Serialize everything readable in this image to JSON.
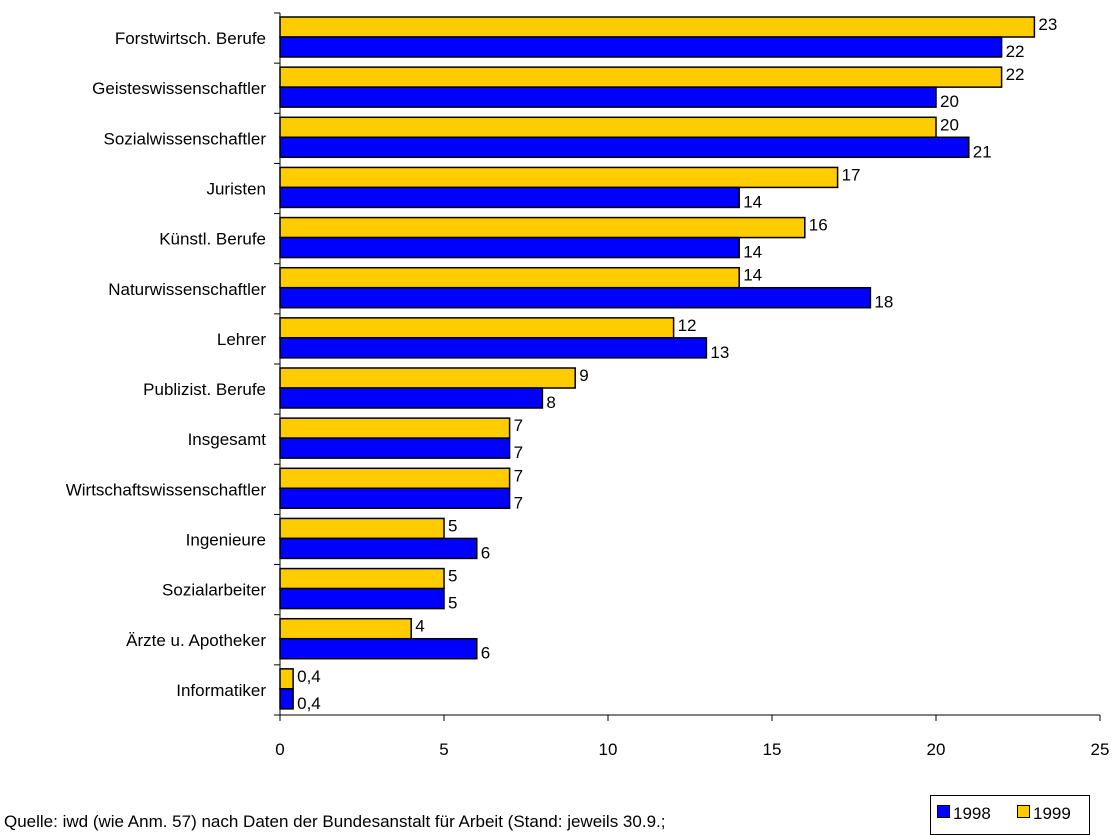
{
  "chart_data": {
    "type": "bar",
    "orientation": "horizontal",
    "categories": [
      "Forstwirtsch. Berufe",
      "Geisteswissenschaftler",
      "Sozialwissenschaftler",
      "Juristen",
      "Künstl. Berufe",
      "Naturwissenschaftler",
      "Lehrer",
      "Publizist. Berufe",
      "Insgesamt",
      "Wirtschaftswissenschaftler",
      "Ingenieure",
      "Sozialarbeiter",
      "Ärzte u. Apotheker",
      "Informatiker"
    ],
    "series": [
      {
        "name": "1999",
        "color": "#ffcc00",
        "values": [
          23,
          22,
          20,
          17,
          16,
          14,
          12,
          9,
          7,
          7,
          5,
          5,
          4,
          0.4
        ],
        "labels": [
          "23",
          "22",
          "20",
          "17",
          "16",
          "14",
          "12",
          "9",
          "7",
          "7",
          "5",
          "5",
          "4",
          "0,4"
        ]
      },
      {
        "name": "1998",
        "color": "#0000ff",
        "values": [
          22,
          20,
          21,
          14,
          14,
          18,
          13,
          8,
          7,
          7,
          6,
          5,
          6,
          0.4
        ],
        "labels": [
          "22",
          "20",
          "21",
          "14",
          "14",
          "18",
          "13",
          "8",
          "7",
          "7",
          "6",
          "5",
          "6",
          "0,4"
        ]
      }
    ],
    "xlim": [
      0,
      25
    ],
    "xticks": [
      0,
      5,
      10,
      15,
      20,
      25
    ],
    "xtick_labels": [
      "0",
      "5",
      "10",
      "15",
      "20",
      "25"
    ],
    "grid": false,
    "legend_position": "bottom-right",
    "legend_order": [
      "1998",
      "1999"
    ]
  },
  "source_text": "Quelle: iwd (wie Anm. 57) nach Daten der Bundesanstalt für Arbeit (Stand: jeweils 30.9.;"
}
